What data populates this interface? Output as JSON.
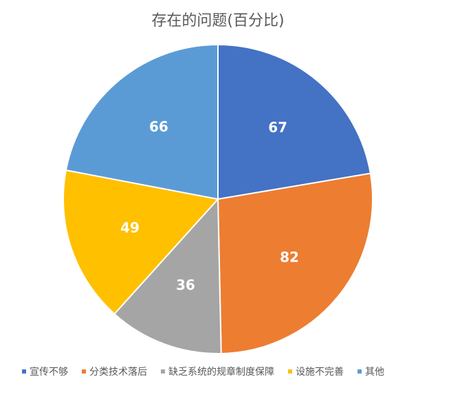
{
  "chart_data": {
    "type": "pie",
    "title": "存在的问题(百分比)",
    "categories": [
      "宣传不够",
      "分类技术落后",
      "缺乏系统的规章制度保障",
      "设施不完善",
      "其他"
    ],
    "values": [
      67,
      82,
      36,
      49,
      66
    ],
    "colors": [
      "#4472c4",
      "#ed7d31",
      "#a5a5a5",
      "#ffc000",
      "#5b9bd5"
    ],
    "legend": "bottom"
  }
}
